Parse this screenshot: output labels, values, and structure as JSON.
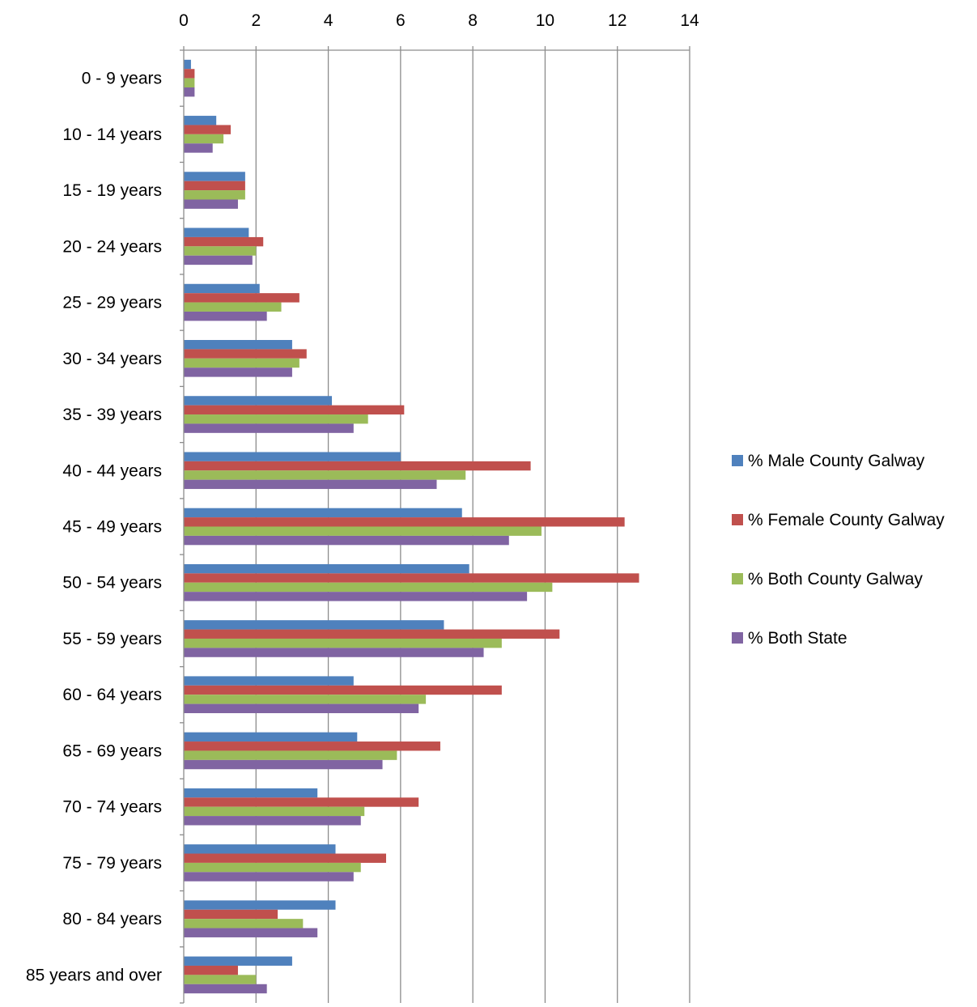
{
  "chart_data": {
    "type": "bar",
    "orientation": "horizontal",
    "title": "",
    "xlabel": "",
    "ylabel": "",
    "xlim": [
      0,
      14
    ],
    "x_ticks": [
      "0",
      "2",
      "4",
      "6",
      "8",
      "10",
      "12",
      "14"
    ],
    "x_axis_position": "top",
    "grid": true,
    "legend_position": "right",
    "categories": [
      "0 - 9 years",
      "10 - 14 years",
      "15 - 19 years",
      "20 - 24 years",
      "25 - 29 years",
      "30 - 34 years",
      "35 - 39 years",
      "40 - 44 years",
      "45 - 49 years",
      "50 - 54 years",
      "55 - 59 years",
      "60 - 64 years",
      "65 - 69 years",
      "70 - 74 years",
      "75 - 79 years",
      "80 - 84 years",
      "85 years and over"
    ],
    "series": [
      {
        "name": "% Male County Galway",
        "color": "#4f81bd",
        "values": [
          0.2,
          0.9,
          1.7,
          1.8,
          2.1,
          3.0,
          4.1,
          6.0,
          7.7,
          7.9,
          7.2,
          4.7,
          4.8,
          3.7,
          4.2,
          4.2,
          3.0
        ]
      },
      {
        "name": "% Female County Galway",
        "color": "#c0504d",
        "values": [
          0.3,
          1.3,
          1.7,
          2.2,
          3.2,
          3.4,
          6.1,
          9.6,
          12.2,
          12.6,
          10.4,
          8.8,
          7.1,
          6.5,
          5.6,
          2.6,
          1.5
        ]
      },
      {
        "name": "% Both County Galway",
        "color": "#9bbb59",
        "values": [
          0.3,
          1.1,
          1.7,
          2.0,
          2.7,
          3.2,
          5.1,
          7.8,
          9.9,
          10.2,
          8.8,
          6.7,
          5.9,
          5.0,
          4.9,
          3.3,
          2.0
        ]
      },
      {
        "name": "% Both State",
        "color": "#8064a2",
        "values": [
          0.3,
          0.8,
          1.5,
          1.9,
          2.3,
          3.0,
          4.7,
          7.0,
          9.0,
          9.5,
          8.3,
          6.5,
          5.5,
          4.9,
          4.7,
          3.7,
          2.3
        ]
      }
    ]
  }
}
